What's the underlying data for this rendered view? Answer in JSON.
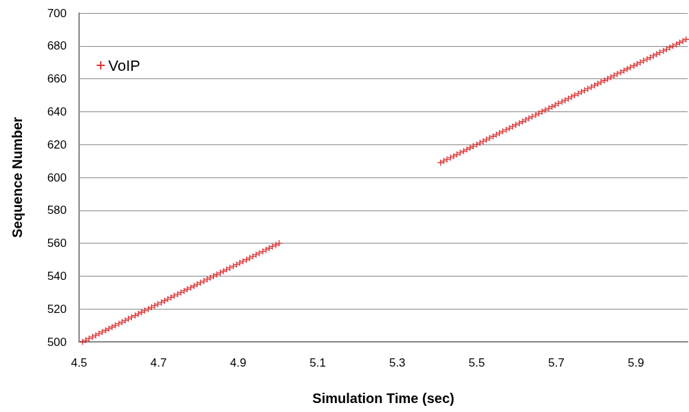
{
  "chart_data": {
    "type": "scatter",
    "xlabel": "Simulation Time (sec)",
    "ylabel": "Sequence Number",
    "x": [
      4.509,
      4.517,
      4.525,
      4.534,
      4.542,
      4.55,
      4.558,
      4.567,
      4.575,
      4.583,
      4.591,
      4.6,
      4.608,
      4.616,
      4.624,
      4.632,
      4.641,
      4.649,
      4.657,
      4.665,
      4.674,
      4.682,
      4.69,
      4.698,
      4.707,
      4.715,
      4.723,
      4.731,
      4.739,
      4.748,
      4.756,
      4.764,
      4.772,
      4.781,
      4.789,
      4.797,
      4.805,
      4.814,
      4.822,
      4.83,
      4.838,
      4.846,
      4.855,
      4.863,
      4.871,
      4.879,
      4.888,
      4.896,
      4.904,
      4.912,
      4.921,
      4.929,
      4.937,
      4.945,
      4.953,
      4.962,
      4.97,
      4.978,
      4.986,
      4.995,
      5.003,
      5.409,
      5.417,
      5.425,
      5.434,
      5.442,
      5.45,
      5.458,
      5.467,
      5.475,
      5.483,
      5.491,
      5.5,
      5.508,
      5.516,
      5.524,
      5.532,
      5.541,
      5.549,
      5.557,
      5.565,
      5.574,
      5.582,
      5.59,
      5.598,
      5.607,
      5.615,
      5.623,
      5.631,
      5.639,
      5.648,
      5.656,
      5.664,
      5.672,
      5.681,
      5.689,
      5.697,
      5.705,
      5.714,
      5.722,
      5.73,
      5.738,
      5.746,
      5.755,
      5.763,
      5.771,
      5.779,
      5.788,
      5.796,
      5.804,
      5.812,
      5.821,
      5.829,
      5.837,
      5.845,
      5.853,
      5.862,
      5.87,
      5.878,
      5.886,
      5.895,
      5.903,
      5.911,
      5.919,
      5.928,
      5.936,
      5.944,
      5.952,
      5.96,
      5.969,
      5.977,
      5.985,
      5.993,
      6.002,
      6.01,
      6.018,
      6.026
    ],
    "series": [
      {
        "name": "VoIP",
        "color": "#d00000",
        "values": [
          500,
          501,
          502,
          503,
          504,
          505,
          506,
          507,
          508,
          509,
          510,
          511,
          512,
          513,
          514,
          515,
          516,
          517,
          518,
          519,
          520,
          521,
          522,
          523,
          524,
          525,
          526,
          527,
          528,
          529,
          530,
          531,
          532,
          533,
          534,
          535,
          536,
          537,
          538,
          539,
          540,
          541,
          542,
          543,
          544,
          545,
          546,
          547,
          548,
          549,
          550,
          551,
          552,
          553,
          554,
          555,
          556,
          557,
          558,
          559,
          560,
          609,
          610,
          611,
          612,
          613,
          614,
          615,
          616,
          617,
          618,
          619,
          620,
          621,
          622,
          623,
          624,
          625,
          626,
          627,
          628,
          629,
          630,
          631,
          632,
          633,
          634,
          635,
          636,
          637,
          638,
          639,
          640,
          641,
          642,
          643,
          644,
          645,
          646,
          647,
          648,
          649,
          650,
          651,
          652,
          653,
          654,
          655,
          656,
          657,
          658,
          659,
          660,
          661,
          662,
          663,
          664,
          665,
          666,
          667,
          668,
          669,
          670,
          671,
          672,
          673,
          674,
          675,
          676,
          677,
          678,
          679,
          680,
          681,
          682,
          683,
          684
        ]
      }
    ],
    "xlim": [
      4.5,
      6.03
    ],
    "xticks": [
      4.5,
      4.7,
      4.9,
      5.1,
      5.3,
      5.5,
      5.7,
      5.9
    ],
    "ylim": [
      500,
      700
    ],
    "yticks": [
      500,
      520,
      540,
      560,
      580,
      600,
      620,
      640,
      660,
      680,
      700
    ],
    "grid": "y",
    "legend": "top left",
    "marker": "cross"
  }
}
